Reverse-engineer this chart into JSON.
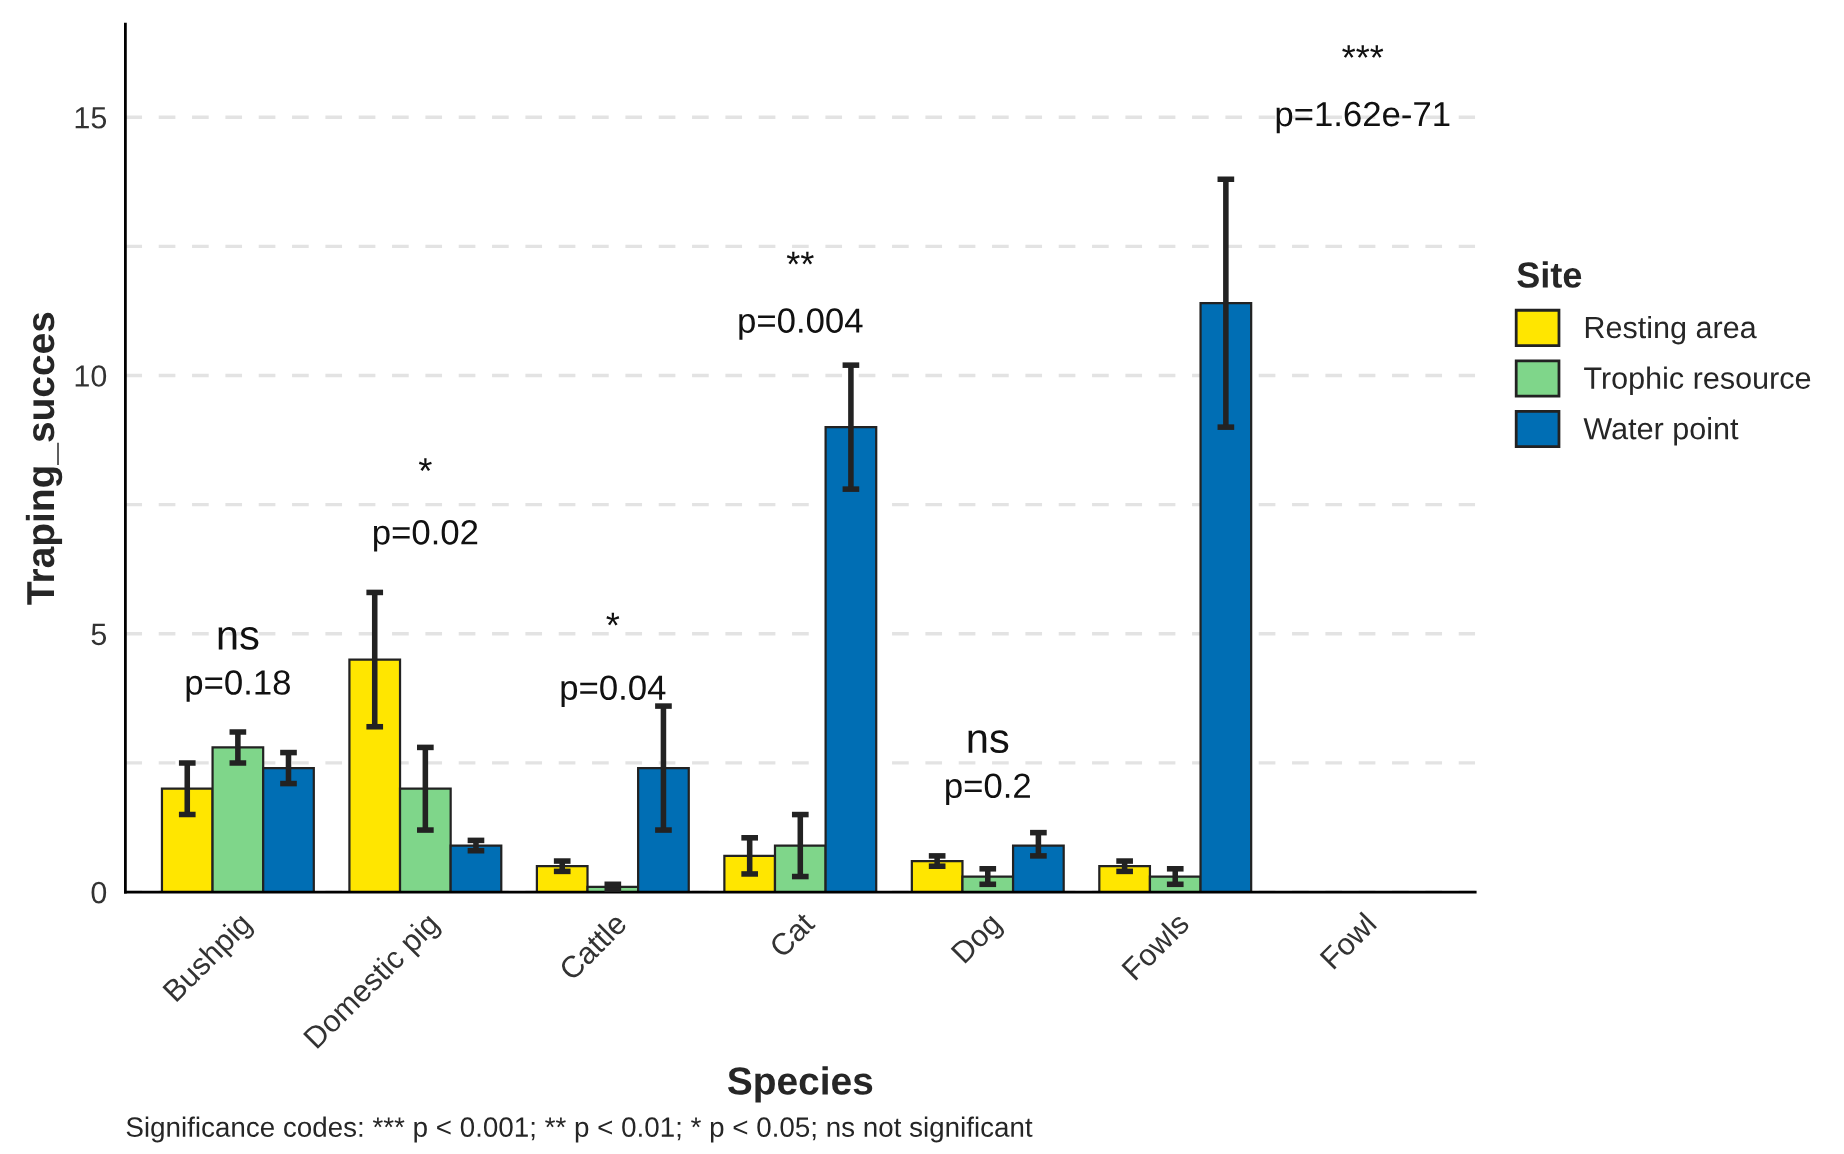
{
  "chart_data": {
    "type": "bar",
    "xlabel": "Species",
    "ylabel": "Traping_succes",
    "legend_title": "Site",
    "categories": [
      "Bushpig",
      "Domestic pig",
      "Cattle",
      "Cat",
      "Dog",
      "Fowls",
      "Fowl"
    ],
    "series": [
      {
        "name": "Resting area",
        "color": "#ffe600",
        "values": [
          2.0,
          4.5,
          0.5,
          0.7,
          0.6,
          0.5,
          null
        ],
        "errors": [
          [
            1.5,
            2.5
          ],
          [
            3.2,
            5.8
          ],
          [
            0.4,
            0.6
          ],
          [
            0.35,
            1.05
          ],
          [
            0.5,
            0.7
          ],
          [
            0.4,
            0.6
          ],
          null
        ]
      },
      {
        "name": "Trophic resource",
        "color": "#7fd68a",
        "values": [
          2.8,
          2.0,
          0.1,
          0.9,
          0.3,
          0.3,
          null
        ],
        "errors": [
          [
            2.5,
            3.1
          ],
          [
            1.2,
            2.8
          ],
          [
            0.05,
            0.15
          ],
          [
            0.3,
            1.5
          ],
          [
            0.15,
            0.45
          ],
          [
            0.15,
            0.45
          ],
          null
        ]
      },
      {
        "name": "Water point",
        "color": "#006eb4",
        "values": [
          2.4,
          0.9,
          2.4,
          9.0,
          0.9,
          11.4,
          null
        ],
        "errors": [
          [
            2.1,
            2.7
          ],
          [
            0.8,
            1.0
          ],
          [
            1.2,
            3.6
          ],
          [
            7.8,
            10.2
          ],
          [
            0.7,
            1.15
          ],
          [
            9.0,
            13.8
          ],
          null
        ]
      }
    ],
    "ylim": [
      0,
      16.8
    ],
    "yticks": [
      0,
      {
        "value": 2.5,
        "label": null
      },
      5,
      {
        "value": 7.5,
        "label": null
      },
      10,
      {
        "value": 12.5,
        "label": null
      },
      15
    ],
    "grid": "y",
    "legend": "right",
    "annotations": [
      "ns",
      "p=0.18",
      "*",
      "p=0.02",
      "*",
      "p=0.04",
      "**",
      "p=0.004",
      "ns",
      "p=0.2",
      "***",
      "p=1.62e-71",
      "Significance codes: *** p < 0.001; ** p < 0.01; * p < 0.05; ns not significant"
    ]
  }
}
